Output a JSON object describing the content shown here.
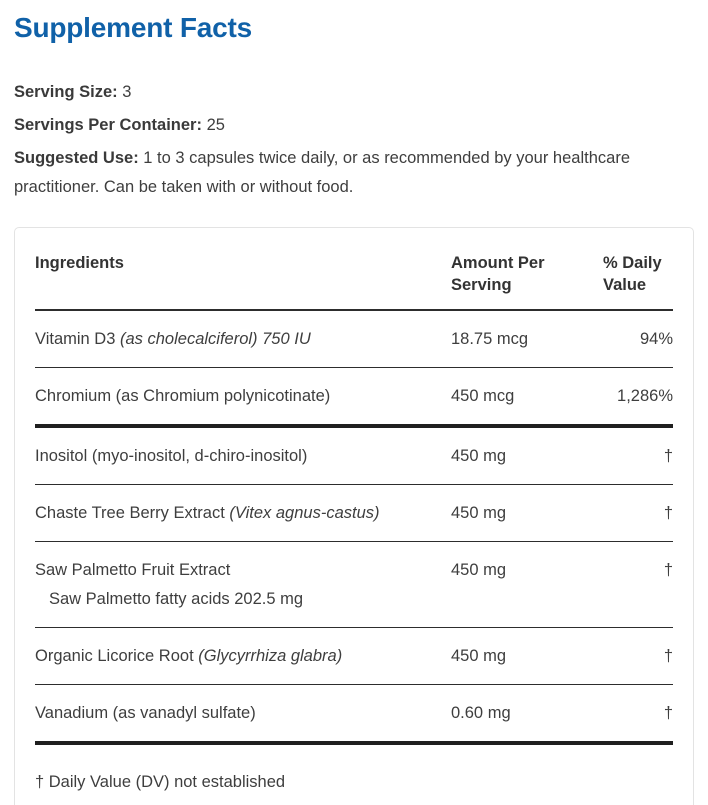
{
  "page": {
    "title": "Supplement Facts",
    "title_color": "#1061a8"
  },
  "meta": {
    "serving_size": {
      "label": "Serving Size:",
      "value": "3"
    },
    "servings_per_container": {
      "label": "Servings Per Container:",
      "value": "25"
    },
    "suggested_use": {
      "label": "Suggested Use:",
      "value": "1 to 3 capsules twice daily, or as recommended by your healthcare practitioner. Can be taken with or without food."
    }
  },
  "table": {
    "headers": {
      "ingredients": "Ingredients",
      "amount": "Amount Per Serving",
      "daily": "% Daily Value"
    },
    "rows": [
      {
        "name": "Vitamin D3",
        "name_italic": "(as cholecalciferol) 750 IU",
        "amount": "18.75 mcg",
        "daily": "94%"
      },
      {
        "name": "Chromium (as Chromium polynicotinate)",
        "amount": "450 mcg",
        "daily": "1,286%"
      },
      {
        "name": "Inositol (myo-inositol, d-chiro-inositol)",
        "amount": "450 mg",
        "daily": "†"
      },
      {
        "name": "Chaste Tree Berry Extract",
        "name_italic": "(Vitex agnus-castus)",
        "amount": "450 mg",
        "daily": "†"
      },
      {
        "name": "Saw Palmetto Fruit Extract",
        "sub": "Saw Palmetto fatty acids 202.5 mg",
        "amount": "450 mg",
        "daily": "†"
      },
      {
        "name": "Organic Licorice Root",
        "name_italic": "(Glycyrrhiza glabra)",
        "amount": "450 mg",
        "daily": "†"
      },
      {
        "name": "Vanadium (as vanadyl sulfate)",
        "amount": "0.60 mg",
        "daily": "†"
      }
    ],
    "footnote": "† Daily Value (DV) not established"
  }
}
